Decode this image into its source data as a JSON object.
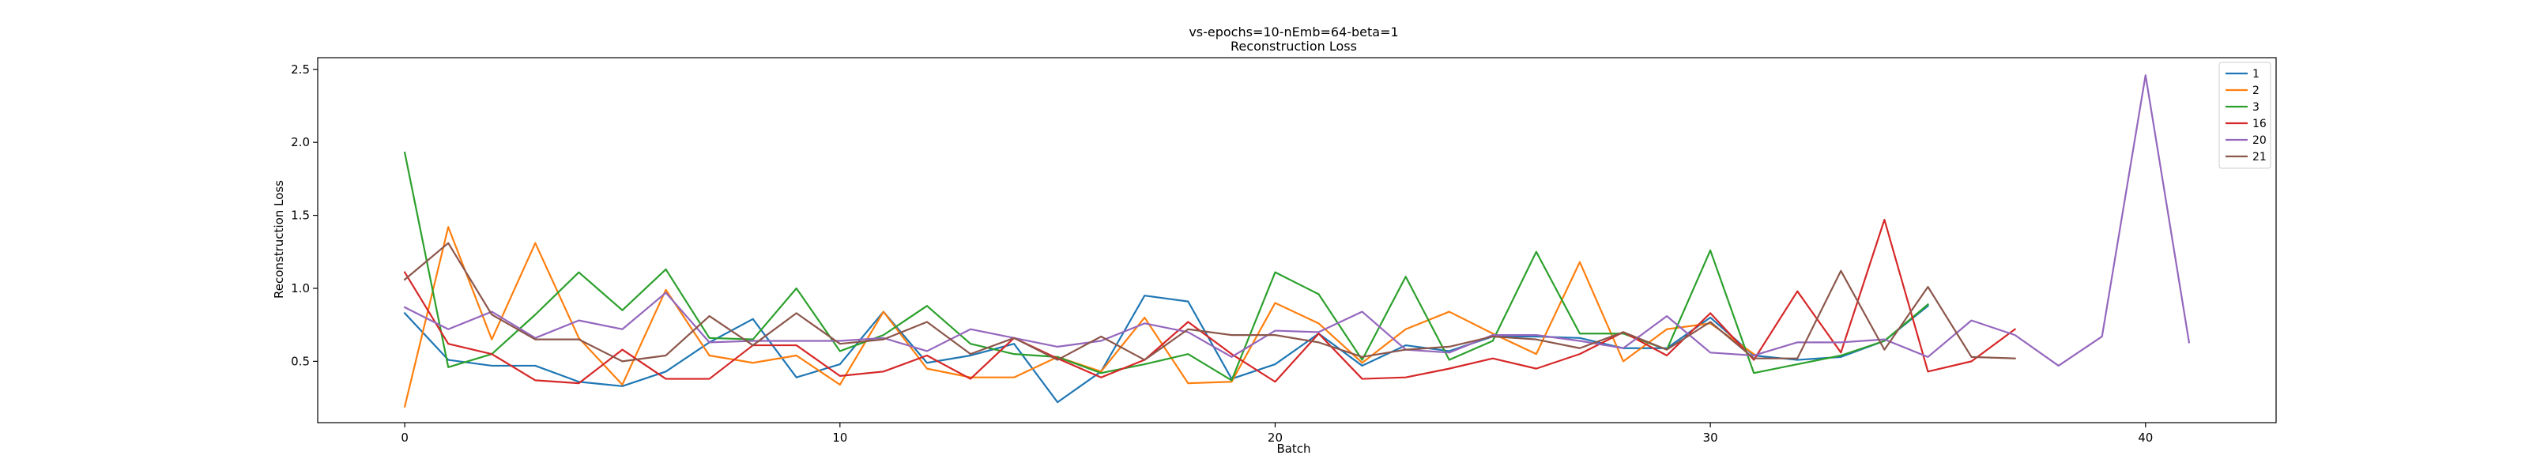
{
  "chart_data": {
    "type": "line",
    "title": "vs-epochs=10-nEmb=64-beta=1",
    "subtitle": "Reconstruction Loss",
    "xlabel": "Batch",
    "ylabel": "Reconstruction Loss",
    "xlim": [
      -2,
      43
    ],
    "ylim": [
      0.08,
      2.58
    ],
    "xticks": [
      0,
      10,
      20,
      30,
      40
    ],
    "yticks": [
      0.5,
      1.0,
      1.5,
      2.0,
      2.5
    ],
    "ytick_labels": [
      "0.5",
      "1.0",
      "1.5",
      "2.0",
      "2.5"
    ],
    "legend_position": "top-right",
    "grid": false,
    "series": [
      {
        "name": "1",
        "color": "#1f77b4",
        "values": [
          0.83,
          0.51,
          0.47,
          0.47,
          0.36,
          0.33,
          0.43,
          0.63,
          0.79,
          0.39,
          0.48,
          0.84,
          0.49,
          0.54,
          0.62,
          0.22,
          0.43,
          0.95,
          0.91,
          0.38,
          0.48,
          0.69,
          0.47,
          0.61,
          0.57,
          0.67,
          0.67,
          0.66,
          0.59,
          0.59,
          0.8,
          0.54,
          0.51,
          0.53,
          0.64,
          0.88
        ]
      },
      {
        "name": "2",
        "color": "#ff7f0e",
        "values": [
          0.19,
          1.42,
          0.65,
          1.31,
          0.66,
          0.34,
          0.99,
          0.54,
          0.49,
          0.54,
          0.34,
          0.84,
          0.45,
          0.39,
          0.39,
          0.53,
          0.43,
          0.8,
          0.35,
          0.36,
          0.9,
          0.76,
          0.49,
          0.72,
          0.84,
          0.69,
          0.55,
          1.18,
          0.5,
          0.72,
          0.76,
          0.55
        ]
      },
      {
        "name": "3",
        "color": "#2ca02c",
        "values": [
          1.93,
          0.46,
          0.55,
          0.82,
          1.11,
          0.85,
          1.13,
          0.66,
          0.65,
          1.0,
          0.57,
          0.68,
          0.88,
          0.62,
          0.55,
          0.53,
          0.42,
          0.48,
          0.55,
          0.37,
          1.11,
          0.96,
          0.51,
          1.08,
          0.51,
          0.64,
          1.25,
          0.69,
          0.69,
          0.58,
          1.26,
          0.42,
          0.48,
          0.54,
          0.64,
          0.89
        ]
      },
      {
        "name": "16",
        "color": "#d62728",
        "values": [
          1.11,
          0.62,
          0.55,
          0.37,
          0.35,
          0.58,
          0.38,
          0.38,
          0.61,
          0.61,
          0.4,
          0.43,
          0.54,
          0.38,
          0.66,
          0.52,
          0.39,
          0.51,
          0.77,
          0.55,
          0.36,
          0.69,
          0.38,
          0.39,
          0.45,
          0.52,
          0.45,
          0.55,
          0.7,
          0.54,
          0.83,
          0.51,
          0.98,
          0.56,
          1.47,
          0.43,
          0.5,
          0.72
        ]
      },
      {
        "name": "20",
        "color": "#9467bd",
        "values": [
          0.87,
          0.72,
          0.84,
          0.66,
          0.78,
          0.72,
          0.97,
          0.63,
          0.64,
          0.64,
          0.64,
          0.66,
          0.57,
          0.72,
          0.66,
          0.6,
          0.64,
          0.76,
          0.7,
          0.53,
          0.71,
          0.7,
          0.84,
          0.58,
          0.56,
          0.68,
          0.68,
          0.64,
          0.59,
          0.81,
          0.56,
          0.54,
          0.63,
          0.63,
          0.65,
          0.53,
          0.78,
          0.68,
          0.47,
          0.67,
          2.46,
          0.63
        ]
      },
      {
        "name": "21",
        "color": "#8c564b",
        "values": [
          1.06,
          1.31,
          0.82,
          0.65,
          0.65,
          0.5,
          0.54,
          0.81,
          0.61,
          0.83,
          0.62,
          0.65,
          0.77,
          0.55,
          0.66,
          0.51,
          0.67,
          0.51,
          0.72,
          0.68,
          0.68,
          0.63,
          0.53,
          0.58,
          0.6,
          0.67,
          0.65,
          0.59,
          0.7,
          0.58,
          0.77,
          0.52,
          0.52,
          1.12,
          0.58,
          1.01,
          0.53,
          0.52
        ]
      }
    ]
  }
}
